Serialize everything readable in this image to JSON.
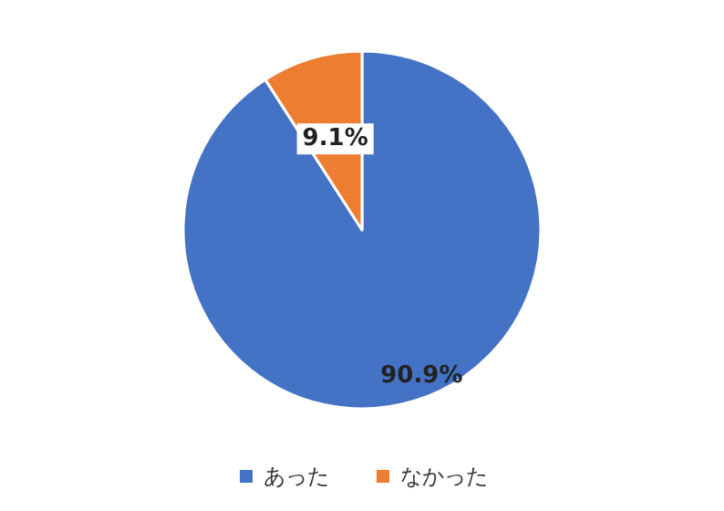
{
  "chart_data": {
    "type": "pie",
    "categories": [
      "あった",
      "なかった"
    ],
    "values": [
      90.9,
      9.1
    ],
    "colors": [
      "#4472c4",
      "#ed7d31"
    ],
    "value_labels": [
      "90.9%",
      "9.1%"
    ],
    "legend": "bottom"
  }
}
